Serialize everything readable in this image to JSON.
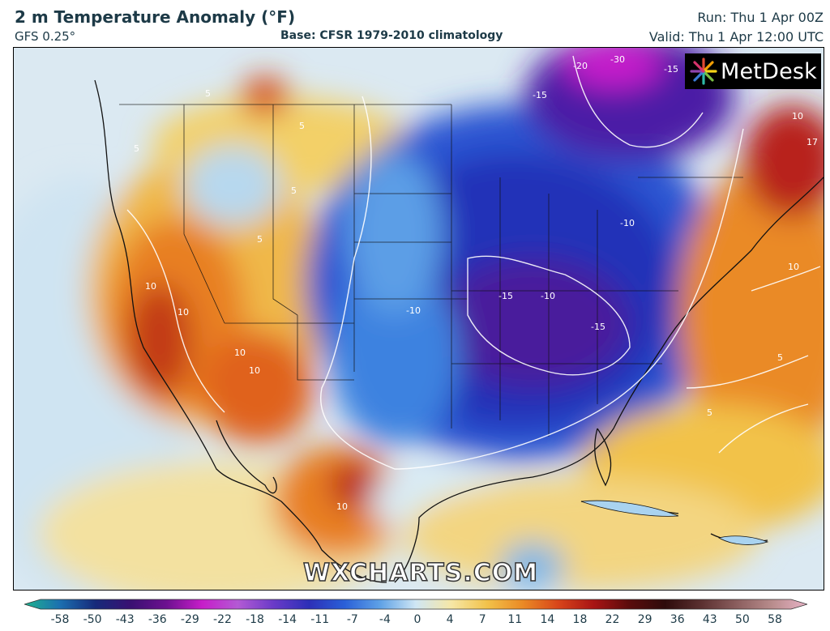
{
  "header": {
    "title": "2 m Temperature Anomaly (°F)",
    "model": "GFS 0.25°",
    "base": "Base: CFSR 1979-2010 climatology",
    "run": "Run: Thu 1 Apr 00Z",
    "valid": "Valid: Thu 1 Apr 12:00 UTC"
  },
  "logo": {
    "brand": "MetDesk",
    "icon": "metdesk-burst-icon"
  },
  "watermark": "WXCHARTS.COM",
  "contour_labels": [
    "-30",
    "-20",
    "-15",
    "-15",
    "-15",
    "-10",
    "-10",
    "-15",
    "-10",
    "10",
    "10",
    "17",
    "5",
    "5",
    "5",
    "10",
    "10",
    "10",
    "5",
    "10",
    "5",
    "10",
    "5",
    "5"
  ],
  "legend": {
    "ticks": [
      "-58",
      "-50",
      "-43",
      "-36",
      "-29",
      "-22",
      "-18",
      "-14",
      "-11",
      "-7",
      "-4",
      "0",
      "4",
      "7",
      "11",
      "14",
      "18",
      "22",
      "29",
      "36",
      "43",
      "50",
      "58"
    ],
    "colors": [
      "#1fb38f",
      "#1b6fb0",
      "#162a7a",
      "#3a1072",
      "#6d1190",
      "#c71ec9",
      "#b35ad4",
      "#6a3bc8",
      "#2c2fb7",
      "#2a60d8",
      "#5fa2e6",
      "#cfe6f4",
      "#f6e7a6",
      "#f2c24a",
      "#ea8a25",
      "#d8451a",
      "#a81414",
      "#5a0c0c",
      "#2e0b0b",
      "#5a2f2f",
      "#8a5d5d",
      "#b88c8c",
      "#e8b3c6"
    ]
  }
}
